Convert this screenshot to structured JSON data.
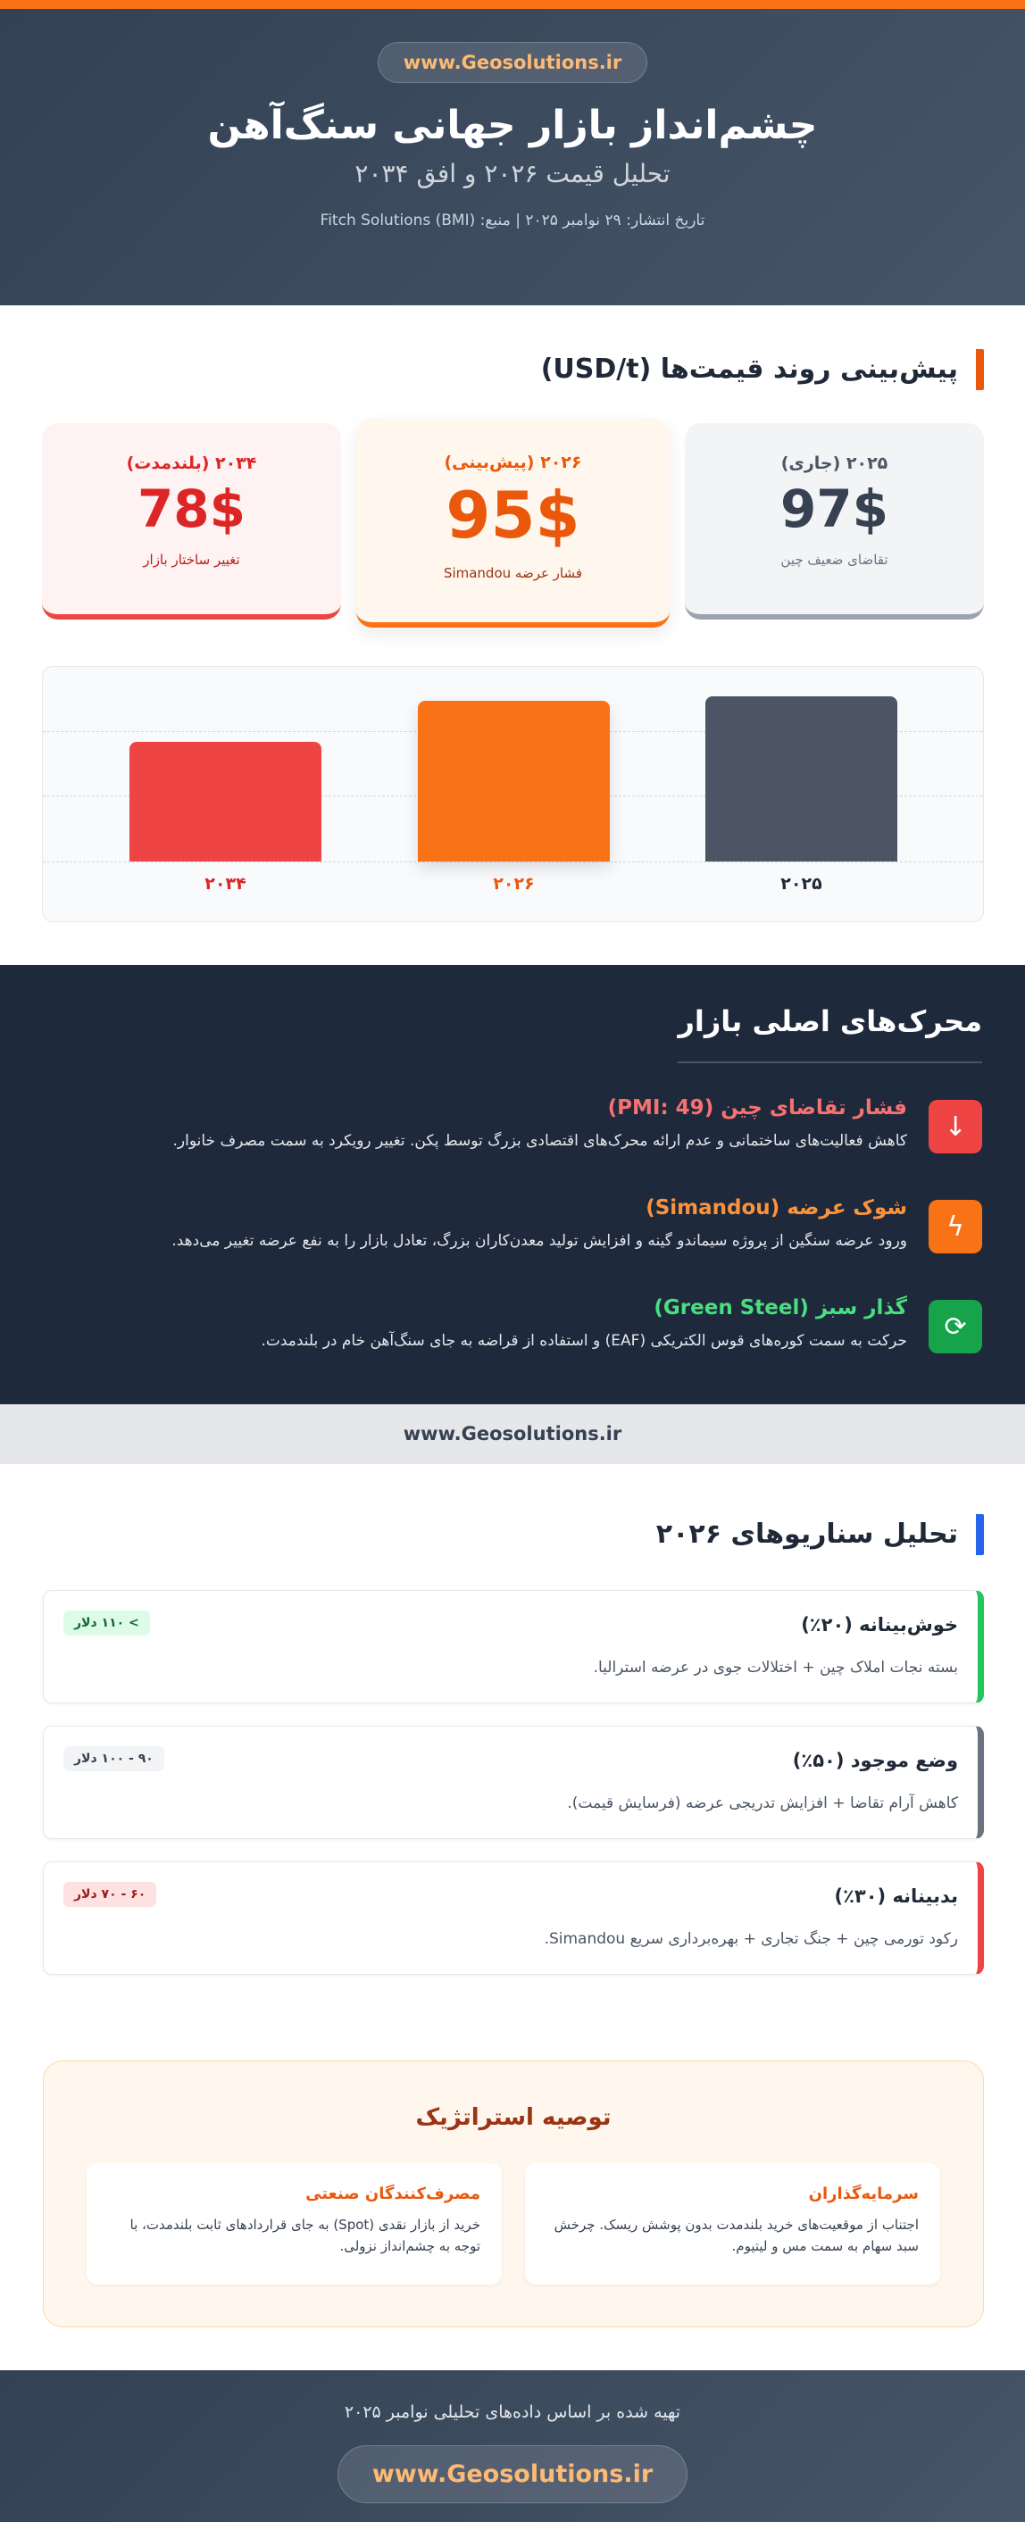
{
  "header": {
    "site": "www.Geosolutions.ir",
    "title": "چشم‌انداز بازار جهانی سنگ‌آهن",
    "subtitle": "تحلیل قیمت ۲۰۲۶ و افق ۲۰۳۴",
    "meta": "تاریخ انتشار: ۲۹ نوامبر ۲۰۲۵ | منبع: Fitch Solutions (BMI)"
  },
  "forecast": {
    "title": "پیش‌بینی روند قیمت‌ها (USD/t)",
    "cards": [
      {
        "label": "۲۰۲۵ (جاری)",
        "value": "97$",
        "note": "تقاضای ضعیف چین"
      },
      {
        "label": "۲۰۲۶ (پیش‌بینی)",
        "value": "95$",
        "note": "فشار عرضه Simandou"
      },
      {
        "label": "۲۰۳۴ (بلندمدت)",
        "value": "78$",
        "note": "تغییر ساختار بازار"
      }
    ]
  },
  "chart_data": {
    "type": "bar",
    "categories": [
      "۲۰۲۵",
      "۲۰۲۶",
      "۲۰۳۴"
    ],
    "values": [
      97,
      95,
      78
    ],
    "colors": [
      "#4b5563",
      "#f97316",
      "#ef4444"
    ],
    "ylabel": "USD/t",
    "grid": true
  },
  "drivers": {
    "title": "محرک‌های اصلی بازار",
    "items": [
      {
        "icon": "arrow-down-icon",
        "color": "#ef4444",
        "title_color": "#f87171",
        "title": "فشار تقاضای چین (PMI: 49)",
        "text": "کاهش فعالیت‌های ساختمانی و عدم ارائه محرک‌های اقتصادی بزرگ توسط پکن. تغییر رویکرد به سمت مصرف خانوار."
      },
      {
        "icon": "lightning-icon",
        "color": "#f97316",
        "title_color": "#fb923c",
        "title": "شوک عرضه (Simandou)",
        "text": "ورود عرضه سنگین از پروژه سیماندو گینه و افزایش تولید معدن‌کاران بزرگ، تعادل بازار را به نفع عرضه تغییر می‌دهد."
      },
      {
        "icon": "refresh-icon",
        "color": "#16a34a",
        "title_color": "#4ade80",
        "title": "گذار سبز (Green Steel)",
        "text": "حرکت به سمت کوره‌های قوس الکتریکی (EAF) و استفاده از قراضه به جای سنگ‌آهن خام در بلندمدت."
      }
    ]
  },
  "band": "www.Geosolutions.ir",
  "scenarios": {
    "title": "تحلیل سناریوهای ۲۰۲۶",
    "items": [
      {
        "title": "خوش‌بینانه (۲۰٪)",
        "text": "بسته نجات املاک چین + اختلالات جوی در عرضه استرالیا.",
        "badge": "> ۱۱۰ دلار",
        "color": "#22c55e",
        "badge_bg": "#dcfce7",
        "badge_fg": "#166534"
      },
      {
        "title": "وضع موجود (۵۰٪)",
        "text": "کاهش آرام تقاضا + افزایش تدریجی عرضه (فرسایش قیمت).",
        "badge": "۹۰ - ۱۰۰ دلار",
        "color": "#6b7280",
        "badge_bg": "#f3f4f6",
        "badge_fg": "#374151"
      },
      {
        "title": "بدبینانه (۳۰٪)",
        "text": "رکود تورمی چین + جنگ تجاری + بهره‌برداری سریع Simandou.",
        "badge": "۶۰ - ۷۰ دلار",
        "color": "#ef4444",
        "badge_bg": "#fee2e2",
        "badge_fg": "#991b1b"
      }
    ]
  },
  "recommendation": {
    "title": "توصیه استراتژیک",
    "cards": [
      {
        "title": "سرمایه‌گذاران",
        "text": "اجتناب از موقعیت‌های خرید بلندمدت بدون پوشش ریسک. چرخش سبد سهام به سمت مس و لیتیوم."
      },
      {
        "title": "مصرف‌کنندگان صنعتی",
        "text": "خرید از بازار نقدی (Spot) به جای قراردادهای ثابت بلندمدت، با توجه به چشم‌انداز نزولی."
      }
    ]
  },
  "footer": {
    "text": "تهیه شده بر اساس داده‌های تحلیلی نوامبر ۲۰۲۵",
    "site": "www.Geosolutions.ir"
  }
}
